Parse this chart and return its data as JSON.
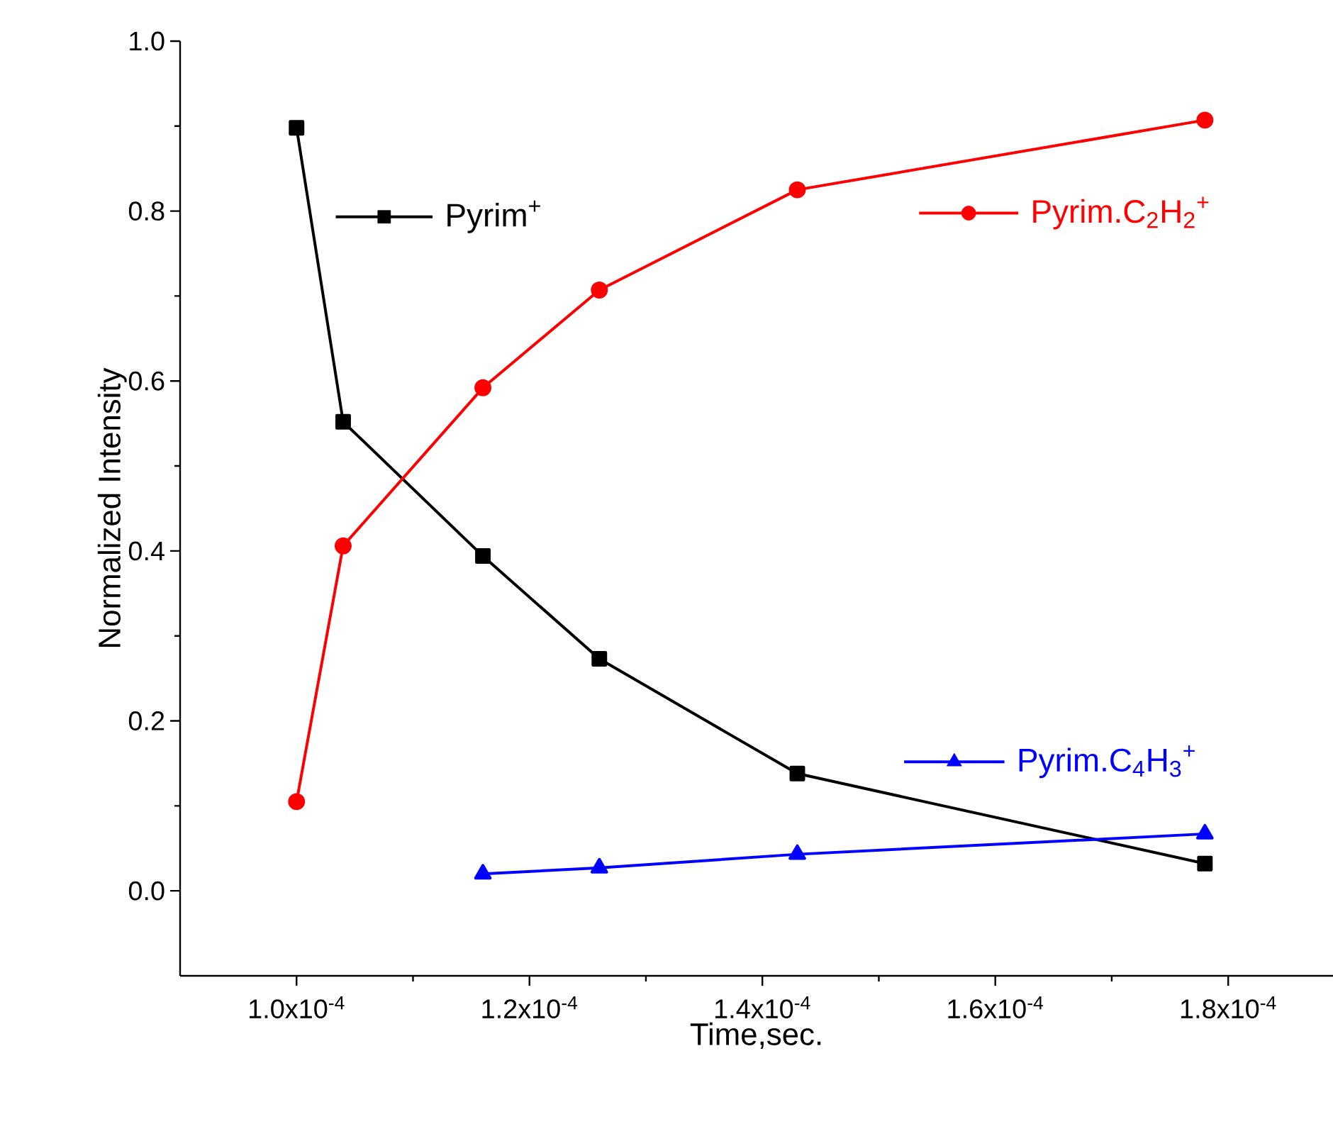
{
  "chart_data": {
    "type": "line",
    "xlabel": "Time,sec.",
    "ylabel": "Normalized Intensity",
    "xlim": [
      9e-05,
      0.000189
    ],
    "ylim": [
      -0.1,
      1.0
    ],
    "xticks": [
      {
        "value": 0.0001,
        "label": "1.0x10$^{-4}$"
      },
      {
        "value": 0.00012,
        "label": "1.2x10$^{-4}$"
      },
      {
        "value": 0.00014,
        "label": "1.4x10$^{-4}$"
      },
      {
        "value": 0.00016,
        "label": "1.6x10$^{-4}$"
      },
      {
        "value": 0.00018,
        "label": "1.8x10$^{-4}$"
      }
    ],
    "yticks": [
      {
        "value": 0.0,
        "label": "0.0"
      },
      {
        "value": 0.2,
        "label": "0.2"
      },
      {
        "value": 0.4,
        "label": "0.4"
      },
      {
        "value": 0.6,
        "label": "0.6"
      },
      {
        "value": 0.8,
        "label": "0.8"
      },
      {
        "value": 1.0,
        "label": "1.0"
      }
    ],
    "line_style": "solid",
    "legend": "top right",
    "series": [
      {
        "name": "Pyrim$^{+}$",
        "color": "#000000",
        "marker": "square",
        "x": [
          0.0001,
          0.000104,
          0.000116,
          0.000126,
          0.000143,
          0.000178
        ],
        "values": [
          0.898,
          0.552,
          0.394,
          0.273,
          0.138,
          0.032
        ]
      },
      {
        "name": "Pyrim.C$_{2}$H$_{2}$$^{+}$",
        "color": "#ff0000",
        "marker": "circle",
        "x": [
          0.0001,
          0.000104,
          0.000116,
          0.000126,
          0.000143,
          0.000178
        ],
        "values": [
          0.105,
          0.406,
          0.592,
          0.707,
          0.825,
          0.907
        ]
      },
      {
        "name": "Pyrim.C$_{4}$H$_{3}$$^{+}$",
        "color": "#0000ff",
        "marker": "triangle",
        "x": [
          0.000116,
          0.000126,
          0.000143,
          0.000178
        ],
        "values": [
          0.02,
          0.027,
          0.043,
          0.067
        ]
      }
    ]
  }
}
